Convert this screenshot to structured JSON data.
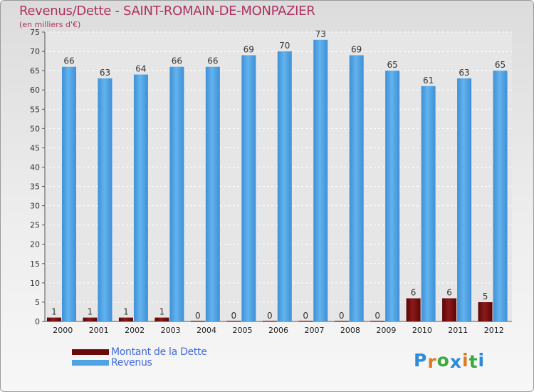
{
  "chart_data": {
    "type": "bar",
    "title": "Revenus/Dette - SAINT-ROMAIN-DE-MONPAZIER",
    "subtitle": "(en milliers d'€)",
    "xlabel": "",
    "ylabel": "",
    "ylim": [
      0,
      75
    ],
    "yticks": [
      0,
      5,
      10,
      15,
      20,
      25,
      30,
      35,
      40,
      45,
      50,
      55,
      60,
      65,
      70,
      75
    ],
    "grid": true,
    "legend_position": "bottom-left",
    "categories": [
      "2000",
      "2001",
      "2002",
      "2003",
      "2004",
      "2005",
      "2006",
      "2007",
      "2008",
      "2009",
      "2010",
      "2011",
      "2012"
    ],
    "series": [
      {
        "name": "Montant de la Dette",
        "color": "#6b0a0a",
        "values": [
          1,
          1,
          1,
          1,
          0,
          0,
          0,
          0,
          0,
          0,
          6,
          6,
          5
        ]
      },
      {
        "name": "Revenus",
        "color": "#4fa3e3",
        "values": [
          66,
          63,
          64,
          66,
          66,
          69,
          70,
          73,
          69,
          65,
          61,
          63,
          65
        ]
      }
    ]
  },
  "logo": {
    "letters": [
      "P",
      "r",
      "o",
      "x",
      "i",
      "t",
      "i"
    ],
    "colors": [
      "#2e8bd8",
      "#e07a20",
      "#3aaa3a",
      "#2e8bd8",
      "#e07a20",
      "#3aaa3a",
      "#2e8bd8"
    ]
  }
}
